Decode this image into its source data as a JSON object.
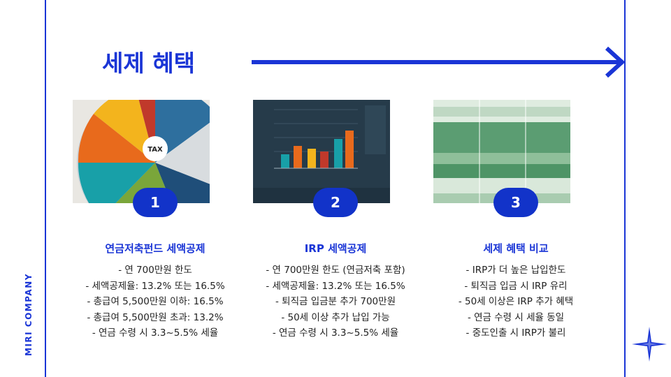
{
  "brand": "MIRI COMPANY",
  "title": "세제 혜택",
  "columns": [
    {
      "number": "1",
      "title": "연금저축펀드 세액공제",
      "bullets": [
        "- 연 700만원 한도",
        "- 세액공제율: 13.2% 또는 16.5%",
        "- 총급여 5,500만원 이하: 16.5%",
        "- 총급여 5,500만원 초과: 13.2%",
        "- 연금 수령 시 3.3~5.5% 세율"
      ]
    },
    {
      "number": "2",
      "title": "IRP 세액공제",
      "bullets": [
        "- 연 700만원 한도 (연금저축 포함)",
        "- 세액공제율: 13.2% 또는 16.5%",
        "- 퇴직금 입금분 추가 700만원",
        "- 50세 이상 추가 납입 가능",
        "- 연금 수령 시 3.3~5.5% 세율"
      ]
    },
    {
      "number": "3",
      "title": "세제 혜택 비교",
      "bullets": [
        "- IRP가 더 높은 납입한도",
        "- 퇴직금 입금 시 IRP 유리",
        "- 50세 이상은 IRP 추가 혜택",
        "- 연금 수령 시 세율 동일",
        "- 중도인출 시 IRP가 불리"
      ]
    }
  ],
  "images": {
    "pie_center": "TAX"
  },
  "colors": {
    "accent": "#1a35d6",
    "badge": "#1233c9"
  }
}
